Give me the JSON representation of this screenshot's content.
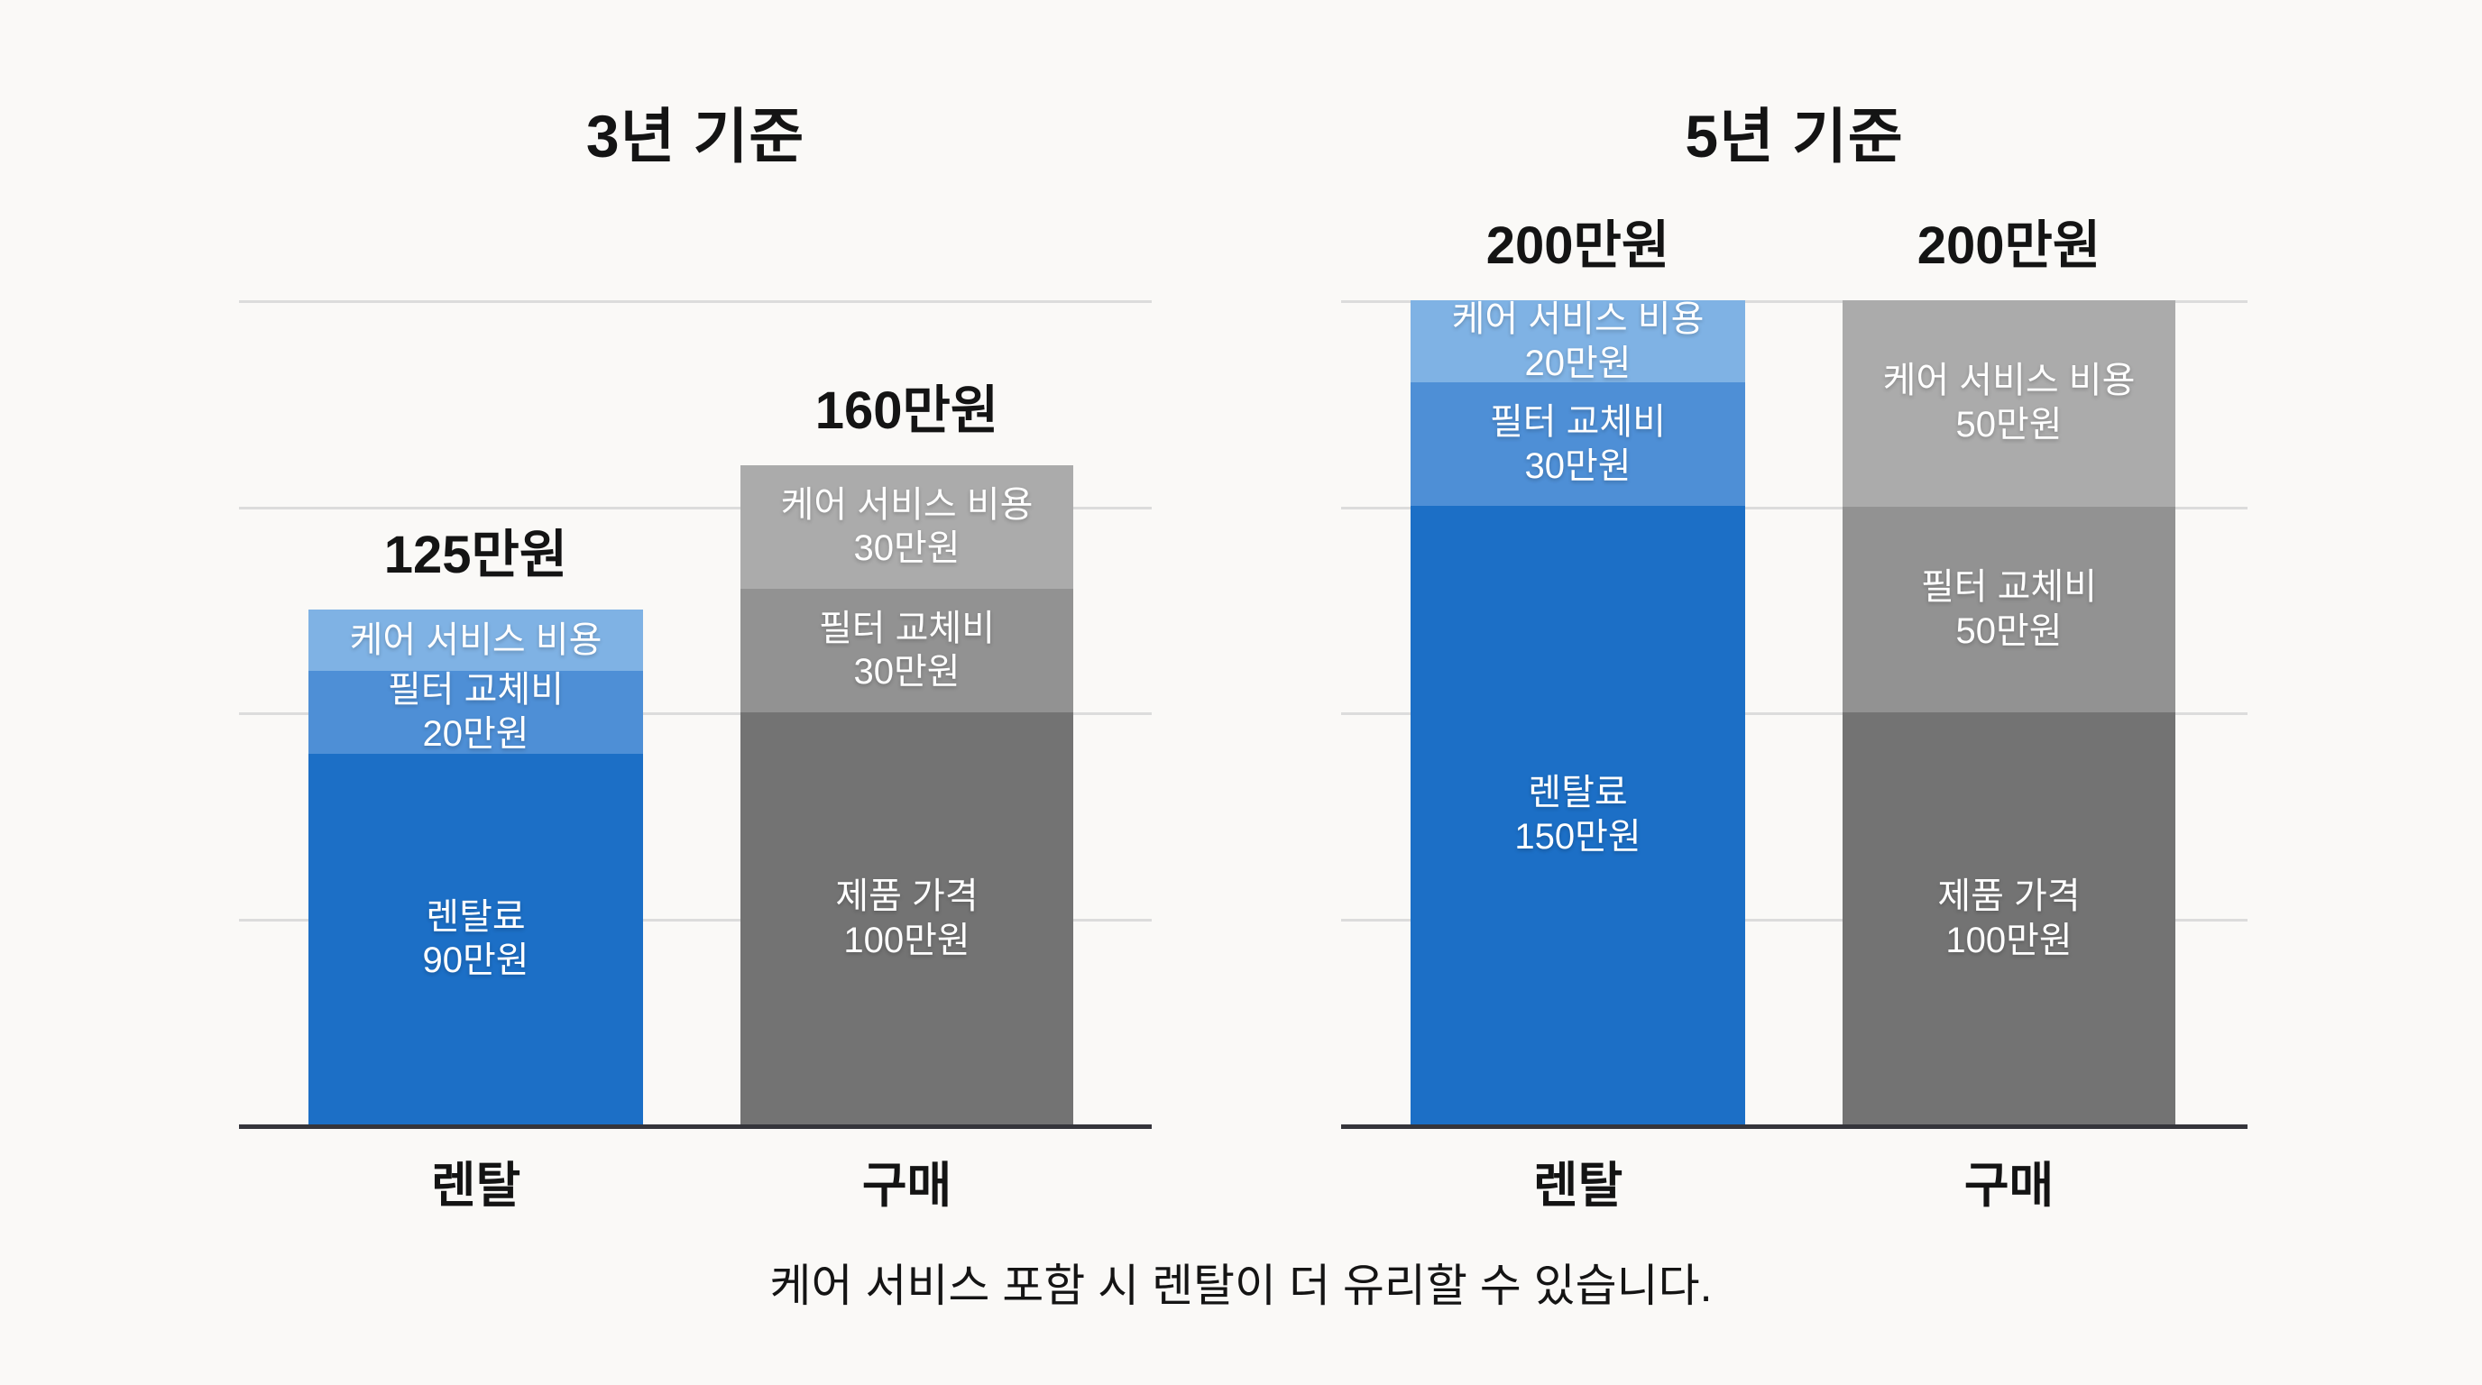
{
  "caption": "케어 서비스 포함 시 렌탈이 더 유리할 수 있습니다.",
  "colors": {
    "background": "#FAF9F7",
    "gridline": "#DCDCDC",
    "axis": "#35353B",
    "care_blue": "#7FB2E4",
    "filter_blue": "#4E8FD6",
    "rental_blue": "#1C6FC6",
    "care_gray": "#ABABAB",
    "filter_gray": "#929292",
    "product_gray": "#737373"
  },
  "chart_data": [
    {
      "type": "bar",
      "stacked": true,
      "title": "3년 기준",
      "unit": "만원",
      "ylim": [
        0,
        200
      ],
      "gridline_levels": [
        200,
        150,
        100,
        50
      ],
      "grid": true,
      "categories": [
        "렌탈",
        "구매"
      ],
      "bars": [
        {
          "category": "렌탈",
          "total_label": "125만원",
          "total_value": 125,
          "segments": [
            {
              "name": "케어 서비스 비용",
              "amount_label": "",
              "value": 15,
              "color": "#7FB2E4"
            },
            {
              "name": "필터 교체비",
              "amount_label": "20만원",
              "value": 20,
              "color": "#4E8FD6"
            },
            {
              "name": "렌탈료",
              "amount_label": "90만원",
              "value": 90,
              "color": "#1C6FC6"
            }
          ]
        },
        {
          "category": "구매",
          "total_label": "160만원",
          "total_value": 160,
          "segments": [
            {
              "name": "케어 서비스 비용",
              "amount_label": "30만원",
              "value": 30,
              "color": "#ABABAB"
            },
            {
              "name": "필터 교체비",
              "amount_label": "30만원",
              "value": 30,
              "color": "#929292"
            },
            {
              "name": "제품 가격",
              "amount_label": "100만원",
              "value": 100,
              "color": "#737373"
            }
          ]
        }
      ]
    },
    {
      "type": "bar",
      "stacked": true,
      "title": "5년 기준",
      "unit": "만원",
      "ylim": [
        0,
        200
      ],
      "gridline_levels": [
        200,
        150,
        100,
        50
      ],
      "grid": true,
      "categories": [
        "렌탈",
        "구매"
      ],
      "bars": [
        {
          "category": "렌탈",
          "total_label": "200만원",
          "total_value": 200,
          "segments": [
            {
              "name": "케어 서비스 비용",
              "amount_label": "20만원",
              "value": 20,
              "color": "#7FB2E4"
            },
            {
              "name": "필터 교체비",
              "amount_label": "30만원",
              "value": 30,
              "color": "#4E8FD6"
            },
            {
              "name": "렌탈료",
              "amount_label": "150만원",
              "value": 150,
              "color": "#1C6FC6"
            }
          ]
        },
        {
          "category": "구매",
          "total_label": "200만원",
          "total_value": 200,
          "segments": [
            {
              "name": "케어 서비스 비용",
              "amount_label": "50만원",
              "value": 50,
              "color": "#ABABAB"
            },
            {
              "name": "필터 교체비",
              "amount_label": "50만원",
              "value": 50,
              "color": "#929292"
            },
            {
              "name": "제품 가격",
              "amount_label": "100만원",
              "value": 100,
              "color": "#737373"
            }
          ]
        }
      ]
    }
  ]
}
